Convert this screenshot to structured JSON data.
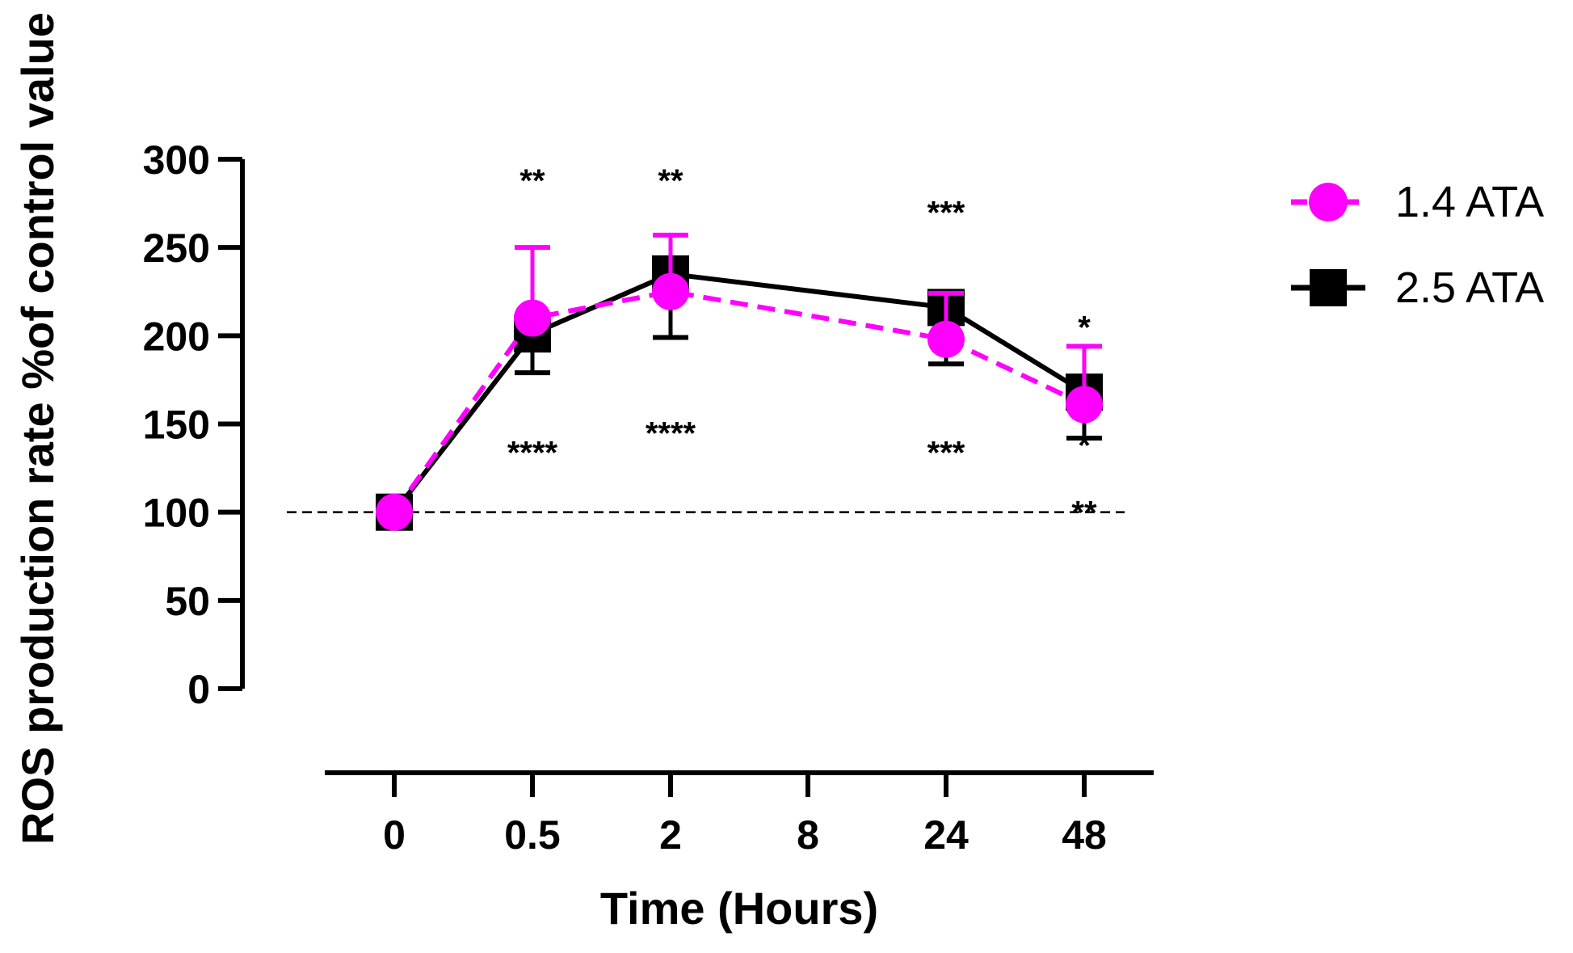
{
  "chart_data": {
    "type": "line",
    "xlabel": "Time (Hours)",
    "ylabel": "ROS production rate %of control value",
    "categories": [
      "0",
      "0.5",
      "2",
      "8",
      "24",
      "48"
    ],
    "ylim": [
      0,
      300
    ],
    "yticks": [
      "0",
      "50",
      "100",
      "150",
      "200",
      "250",
      "300"
    ],
    "reference_line": {
      "y": 100,
      "style": "dashed"
    },
    "legend_position": "right",
    "series": [
      {
        "name": "1.4 ATA",
        "color": "#ff00ff",
        "marker": "circle",
        "line_style": "dashed",
        "points": [
          {
            "x": "0",
            "y": 100,
            "err": 0
          },
          {
            "x": "0.5",
            "y": 210,
            "err": 40
          },
          {
            "x": "2",
            "y": 225,
            "err": 32
          },
          {
            "x": "24",
            "y": 198,
            "err": 26
          },
          {
            "x": "48",
            "y": 161,
            "err": 33
          }
        ]
      },
      {
        "name": "2.5 ATA",
        "color": "#000000",
        "marker": "square",
        "line_style": "solid",
        "points": [
          {
            "x": "0",
            "y": 100,
            "err": 0
          },
          {
            "x": "0.5",
            "y": 201,
            "err": 22
          },
          {
            "x": "2",
            "y": 235,
            "err": 36
          },
          {
            "x": "24",
            "y": 216,
            "err": 32
          },
          {
            "x": "48",
            "y": 168,
            "err": 26
          }
        ]
      }
    ],
    "annotations": [
      {
        "x": "0.5",
        "y": 288,
        "text": "**"
      },
      {
        "x": "2",
        "y": 288,
        "text": "**"
      },
      {
        "x": "24",
        "y": 270,
        "text": "***"
      },
      {
        "x": "48",
        "y": 205,
        "text": "*"
      },
      {
        "x": "0.5",
        "y": 134,
        "text": "****"
      },
      {
        "x": "2",
        "y": 145,
        "text": "****"
      },
      {
        "x": "24",
        "y": 134,
        "text": "***"
      },
      {
        "x": "48",
        "y": 138,
        "text": "*"
      },
      {
        "x": "48",
        "y": 100,
        "text": "**"
      }
    ]
  }
}
